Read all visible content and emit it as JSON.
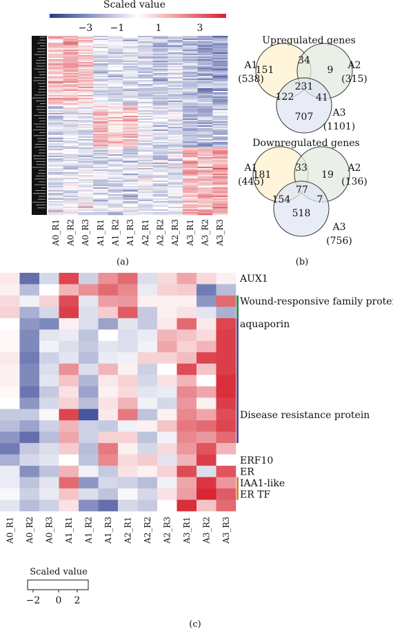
{
  "panels": {
    "a": "(a)",
    "b": "(b)",
    "c": "(c)"
  },
  "colors": {
    "low": "#2b3a8f",
    "mid": "#ffffff",
    "high": "#d6202c",
    "venn_a1": "#fdf2cf",
    "venn_a2": "#e3ebdf",
    "venn_a3": "#dfe6f3",
    "bar_green": "#2e8b57",
    "bar_purple": "#5e4f8e",
    "bar_orange": "#d08a4a"
  },
  "chart_data": [
    {
      "type": "heatmap",
      "panel": "a",
      "legend": {
        "title": "Scaled value",
        "ticks": [
          "−3",
          "−1",
          "1",
          "3"
        ],
        "range": [
          -4,
          4
        ],
        "position": "top"
      },
      "columns": [
        "A0_R1",
        "A0_R2",
        "A0_R3",
        "A1_R1",
        "A1_R2",
        "A1_R3",
        "A2_R1",
        "A2_R2",
        "A2_R3",
        "A3_R1",
        "A3_R2",
        "A3_R3"
      ],
      "row_count": 130,
      "column_profile": [
        [
          0.9,
          1.4,
          0.8,
          -0.5,
          -0.6,
          -0.7,
          -0.9,
          -1.0,
          -0.8,
          -1.4,
          -1.6,
          -1.8
        ],
        [
          -0.8,
          -0.4,
          -0.5,
          1.2,
          0.8,
          1.0,
          -0.3,
          -0.6,
          -0.4,
          -1.3,
          -1.4,
          -1.0
        ],
        [
          -0.6,
          -0.4,
          -0.5,
          -0.8,
          -0.7,
          -0.9,
          -0.5,
          -0.6,
          -0.4,
          1.4,
          1.3,
          1.6
        ]
      ]
    },
    {
      "type": "venn",
      "panel": "b",
      "title": "Upregulated genes",
      "sets": [
        {
          "name": "A1",
          "total": "(538)"
        },
        {
          "name": "A2",
          "total": "(315)"
        },
        {
          "name": "A3",
          "total": "(1101)"
        }
      ],
      "regions": {
        "A1_only": 151,
        "A2_only": 9,
        "A3_only": 707,
        "A1_A2": 34,
        "A1_A3": 122,
        "A2_A3": 41,
        "A1_A2_A3": 231
      }
    },
    {
      "type": "venn",
      "panel": "b",
      "title": "Downregulated genes",
      "sets": [
        {
          "name": "A1",
          "total": "(445)"
        },
        {
          "name": "A2",
          "total": "(136)"
        },
        {
          "name": "A3",
          "total": "(756)"
        }
      ],
      "regions": {
        "A1_only": 181,
        "A2_only": 19,
        "A3_only": 518,
        "A1_A2": 33,
        "A1_A3": 154,
        "A2_A3": 7,
        "A1_A2_A3": 77
      }
    },
    {
      "type": "heatmap",
      "panel": "c",
      "legend": {
        "title": "Scaled value",
        "ticks": [
          "−2",
          "0",
          "2"
        ],
        "range": [
          -3,
          3
        ],
        "position": "bottom-left"
      },
      "columns": [
        "A0_R1",
        "A0_R2",
        "A0_R3",
        "A1_R1",
        "A1_R2",
        "A1_R3",
        "A2_R1",
        "A2_R2",
        "A2_R3",
        "A3_R1",
        "A3_R2",
        "A3_R3"
      ],
      "values": [
        [
          0.3,
          -2.2,
          -0.6,
          2.5,
          -0.7,
          1.5,
          2.0,
          -0.5,
          0.5,
          1.2,
          0.5,
          0.2
        ],
        [
          0.2,
          -1.0,
          0.0,
          1.0,
          1.5,
          2.0,
          1.6,
          -0.3,
          0.6,
          0.7,
          -2.0,
          -1.0
        ],
        [
          0.5,
          -0.2,
          0.6,
          2.4,
          -0.4,
          1.3,
          1.4,
          0.2,
          0.2,
          0.2,
          -1.6,
          2.0
        ],
        [
          0.6,
          -1.2,
          -0.6,
          2.6,
          -0.5,
          0.7,
          2.2,
          -0.8,
          0.2,
          0.4,
          -0.4,
          -1.2
        ],
        [
          0.0,
          -1.6,
          -1.8,
          0.2,
          -0.5,
          -1.4,
          -0.4,
          -0.8,
          0.3,
          2.0,
          0.3,
          2.5
        ],
        [
          0.1,
          -1.8,
          -0.4,
          -0.3,
          -0.9,
          0.0,
          -0.5,
          -0.3,
          1.0,
          0.8,
          0.5,
          2.6
        ],
        [
          0.1,
          -1.8,
          -0.2,
          -0.5,
          -0.8,
          -0.4,
          -0.5,
          -0.2,
          1.2,
          0.6,
          1.0,
          2.6
        ],
        [
          0.3,
          -2.0,
          -0.7,
          -0.4,
          -1.0,
          -0.3,
          -0.2,
          0.6,
          0.6,
          0.9,
          2.5,
          2.6
        ],
        [
          0.2,
          -1.8,
          -0.5,
          1.5,
          -0.5,
          1.0,
          0.2,
          -0.7,
          0.0,
          2.4,
          0.8,
          2.6
        ],
        [
          0.2,
          -1.8,
          -0.4,
          0.8,
          -1.1,
          0.3,
          0.6,
          -0.6,
          0.4,
          1.0,
          0.0,
          2.8
        ],
        [
          0.1,
          -2.1,
          -0.8,
          0.4,
          -1.4,
          0.2,
          0.5,
          -0.4,
          -0.3,
          1.6,
          1.2,
          2.8
        ],
        [
          0.0,
          -1.6,
          -0.6,
          0.6,
          -1.0,
          0.4,
          1.0,
          -0.2,
          -0.6,
          1.4,
          0.2,
          2.6
        ],
        [
          -0.8,
          -0.8,
          -0.1,
          2.5,
          -2.6,
          0.3,
          1.8,
          -0.9,
          0.2,
          1.6,
          1.2,
          2.4
        ],
        [
          -1.0,
          -1.4,
          -0.7,
          1.0,
          -0.7,
          -0.8,
          -0.2,
          0.2,
          0.8,
          1.8,
          2.0,
          2.5
        ],
        [
          -1.6,
          -2.2,
          -1.0,
          1.2,
          -0.7,
          0.6,
          0.6,
          -0.9,
          -0.2,
          1.6,
          1.4,
          2.0
        ],
        [
          -2.0,
          -0.8,
          -0.5,
          0.7,
          -1.0,
          1.8,
          0.2,
          -0.6,
          0.5,
          1.4,
          2.3,
          1.0
        ],
        [
          -1.2,
          -0.6,
          -0.4,
          0.0,
          -0.9,
          1.6,
          0.5,
          0.7,
          -0.4,
          1.0,
          2.6,
          0.0
        ],
        [
          -0.3,
          -1.7,
          -0.9,
          1.0,
          -0.2,
          -0.8,
          0.4,
          0.2,
          0.6,
          2.4,
          -0.5,
          2.3
        ],
        [
          -0.3,
          -0.9,
          -0.4,
          2.0,
          -1.6,
          -0.6,
          -0.7,
          -1.0,
          -0.2,
          1.2,
          2.7,
          1.4
        ],
        [
          -0.1,
          -0.7,
          -0.3,
          0.8,
          -0.5,
          -0.9,
          -0.1,
          -0.6,
          0.4,
          1.3,
          2.9,
          2.2
        ],
        [
          -0.4,
          -1.0,
          -0.7,
          0.4,
          -1.7,
          -2.2,
          -0.6,
          -0.8,
          0.0,
          2.8,
          0.8,
          2.0
        ]
      ],
      "row_labels": [
        {
          "row": 0,
          "text": "AUX1"
        },
        {
          "row": 2,
          "text": "Wound-responsive family protein"
        },
        {
          "row": 4,
          "text": "aquaporin"
        },
        {
          "row": 12,
          "text": "Disease resistance protein"
        },
        {
          "row": 16,
          "text": "ERF10"
        },
        {
          "row": 17,
          "text": "ER"
        },
        {
          "row": 18,
          "text": "IAA1-like"
        },
        {
          "row": 19,
          "text": "ER TF"
        }
      ],
      "row_groups": [
        {
          "from": 2,
          "to": 4,
          "color": "#2e8b57"
        },
        {
          "from": 4,
          "to": 15,
          "color": "#5e4f8e"
        },
        {
          "from": 18,
          "to": 20,
          "color": "#d08a4a"
        }
      ]
    }
  ]
}
